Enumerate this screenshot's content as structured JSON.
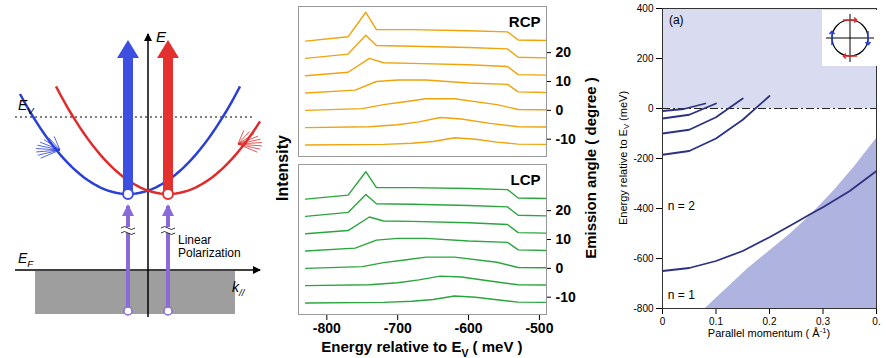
{
  "diagram": {
    "axis_e": "E",
    "ev": {
      "text": "E",
      "sub": "V"
    },
    "ef": {
      "text": "E",
      "sub": "F"
    },
    "k": {
      "text": "k",
      "sub": "//"
    },
    "polarization": "Linear Polarization"
  },
  "chart_data": [
    {
      "type": "line",
      "xlabel": {
        "text": "Energy relative to E",
        "sub": "V",
        "tail": " ( meV )"
      },
      "ylabel": "Intensity",
      "y2label": "Emission angle ( degree )",
      "xlim": [
        -840,
        -490
      ],
      "xticks": [
        -800,
        -700,
        -600,
        -500
      ],
      "y2lim": [
        -16,
        36
      ],
      "y2ticks": [
        20,
        10,
        0,
        -10
      ],
      "panels": [
        {
          "title": "RCP",
          "color": "#f0a30a",
          "series": [
            {
              "angle": 24,
              "x": [
                -830,
                -770,
                -745,
                -730,
                -680,
                -600,
                -545,
                -530,
                -490
              ],
              "values": [
                0,
                1.5,
                10,
                4,
                4,
                3.6,
                3.2,
                0.4,
                0.2
              ]
            },
            {
              "angle": 18,
              "x": [
                -830,
                -770,
                -745,
                -730,
                -680,
                -600,
                -545,
                -530,
                -490
              ],
              "values": [
                0,
                1.5,
                8,
                4.5,
                4.2,
                3.8,
                3.3,
                0.4,
                0.2
              ]
            },
            {
              "angle": 12,
              "x": [
                -830,
                -770,
                -740,
                -720,
                -680,
                -600,
                -545,
                -530,
                -490
              ],
              "values": [
                0,
                1.2,
                6,
                4.5,
                4.3,
                3.8,
                3.2,
                0.4,
                0.2
              ]
            },
            {
              "angle": 6,
              "x": [
                -830,
                -760,
                -730,
                -700,
                -660,
                -600,
                -545,
                -530,
                -490
              ],
              "values": [
                0,
                1,
                4,
                4.5,
                4.5,
                3.5,
                3,
                0.4,
                0.2
              ]
            },
            {
              "angle": 0,
              "x": [
                -830,
                -750,
                -720,
                -690,
                -660,
                -620,
                -560,
                -530,
                -490
              ],
              "values": [
                0,
                0.6,
                2,
                3,
                4,
                4,
                2,
                0.3,
                0.2
              ]
            },
            {
              "angle": -6,
              "x": [
                -830,
                -740,
                -700,
                -670,
                -640,
                -610,
                -570,
                -530,
                -490
              ],
              "values": [
                0,
                0.3,
                1,
                2,
                3.5,
                3,
                1.5,
                0.3,
                0.2
              ]
            },
            {
              "angle": -12,
              "x": [
                -830,
                -720,
                -680,
                -650,
                -620,
                -590,
                -560,
                -530,
                -490
              ],
              "values": [
                0,
                0.2,
                0.6,
                1.2,
                2.5,
                2,
                1,
                0.3,
                0.2
              ]
            }
          ]
        },
        {
          "title": "LCP",
          "color": "#2aa63c",
          "series": [
            {
              "angle": 24,
              "x": [
                -830,
                -770,
                -745,
                -730,
                -680,
                -600,
                -545,
                -530,
                -490
              ],
              "values": [
                0,
                1.4,
                9.5,
                4,
                4,
                3.7,
                3.3,
                0.4,
                0.2
              ]
            },
            {
              "angle": 18,
              "x": [
                -830,
                -770,
                -745,
                -730,
                -680,
                -600,
                -545,
                -530,
                -490
              ],
              "values": [
                0,
                1.4,
                7.6,
                4.4,
                4.2,
                3.8,
                3.3,
                0.4,
                0.2
              ]
            },
            {
              "angle": 12,
              "x": [
                -830,
                -770,
                -740,
                -720,
                -680,
                -600,
                -545,
                -530,
                -490
              ],
              "values": [
                0,
                1.1,
                5.8,
                4.4,
                4.3,
                3.8,
                3.2,
                0.4,
                0.2
              ]
            },
            {
              "angle": 6,
              "x": [
                -830,
                -760,
                -730,
                -700,
                -660,
                -600,
                -545,
                -530,
                -490
              ],
              "values": [
                0,
                1,
                3.8,
                4.4,
                4.4,
                3.5,
                3,
                0.4,
                0.2
              ]
            },
            {
              "angle": 0,
              "x": [
                -830,
                -750,
                -720,
                -690,
                -660,
                -620,
                -560,
                -530,
                -490
              ],
              "values": [
                0,
                0.6,
                2,
                2.9,
                3.9,
                3.9,
                2.1,
                0.3,
                0.2
              ]
            },
            {
              "angle": -6,
              "x": [
                -830,
                -740,
                -700,
                -670,
                -640,
                -610,
                -570,
                -530,
                -490
              ],
              "values": [
                0,
                0.3,
                1,
                2,
                3.3,
                3,
                1.6,
                0.3,
                0.2
              ]
            },
            {
              "angle": -12,
              "x": [
                -830,
                -720,
                -680,
                -650,
                -620,
                -590,
                -560,
                -530,
                -490
              ],
              "values": [
                0,
                0.2,
                0.6,
                1.2,
                2.4,
                2,
                1.1,
                0.3,
                0.2
              ]
            }
          ]
        }
      ]
    },
    {
      "type": "line",
      "xlabel": {
        "text": "Parallel momentum ( Å",
        "sup": "-1",
        "tail": ")"
      },
      "ylabel": {
        "text": "Energy relative to E",
        "sub": "V",
        "tail": " (meV)"
      },
      "xlim": [
        0,
        0.4
      ],
      "xticks": [
        0,
        0.1,
        0.2,
        0.3,
        {
          "value": 0.4,
          "label": "0."
        }
      ],
      "ylim": [
        -800,
        400
      ],
      "yticks": [
        -800,
        -600,
        -400,
        -200,
        0,
        200,
        400
      ],
      "areas": [
        {
          "x": [
            0,
            0.4
          ],
          "y1": [
            0,
            0
          ],
          "y2": [
            400,
            400
          ],
          "color": "#d9dcf0"
        },
        {
          "x": [
            0.08,
            0.12,
            0.16,
            0.2,
            0.24,
            0.28,
            0.32,
            0.36,
            0.4
          ],
          "y1": [
            -800,
            -800,
            -800,
            -800,
            -800,
            -800,
            -800,
            -800,
            -800
          ],
          "y2": [
            -800,
            -720,
            -640,
            -570,
            -500,
            -420,
            -330,
            -230,
            -120
          ],
          "color": "#aeb3e0"
        }
      ],
      "reference_line": {
        "y": 0,
        "line_style": "dashdot"
      },
      "series": [
        {
          "color": "#2c3180",
          "x": [
            0,
            0.05,
            0.1,
            0.15,
            0.2,
            0.25,
            0.28,
            0.3,
            0.35,
            0.4
          ],
          "values": [
            -650,
            -638,
            -610,
            -570,
            -515,
            -455,
            -418,
            -395,
            -330,
            -250
          ]
        },
        {
          "color": "#2c3180",
          "x": [
            0,
            0.05,
            0.1,
            0.15,
            0.2
          ],
          "values": [
            -185,
            -170,
            -120,
            -45,
            50
          ]
        },
        {
          "color": "#2c3180",
          "x": [
            0,
            0.05,
            0.1,
            0.15
          ],
          "values": [
            -100,
            -85,
            -35,
            40
          ]
        },
        {
          "color": "#2c3180",
          "x": [
            0,
            0.05,
            0.1
          ],
          "values": [
            -40,
            -25,
            20
          ]
        },
        {
          "color": "#2c3180",
          "x": [
            0,
            0.04,
            0.08
          ],
          "values": [
            -10,
            -2,
            20
          ]
        }
      ],
      "annotations": [
        {
          "text": "(a)",
          "x": 0.012,
          "y": 355
        },
        {
          "text": "n = 2",
          "x": 0.01,
          "y": -390
        },
        {
          "text": "n = 1",
          "x": 0.01,
          "y": -745
        }
      ]
    }
  ]
}
